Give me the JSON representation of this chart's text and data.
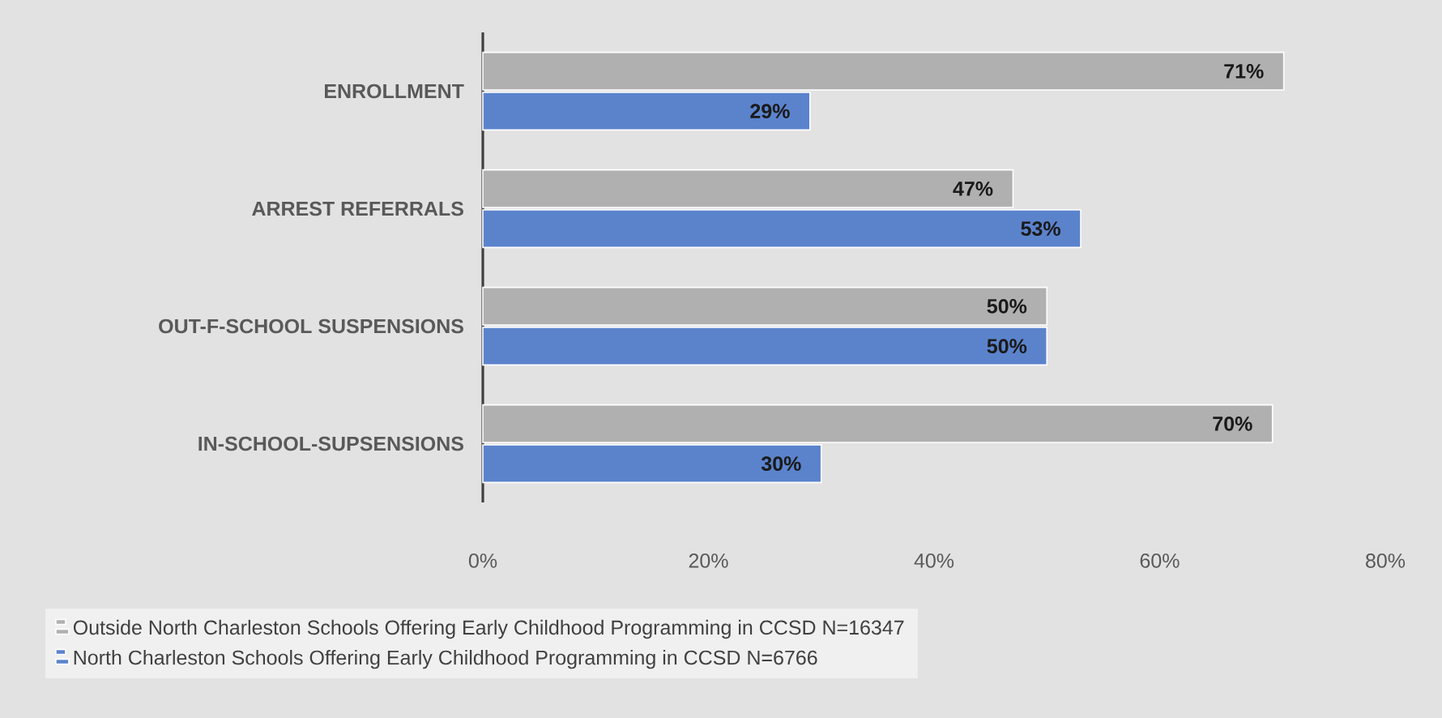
{
  "chart_data": {
    "type": "bar",
    "orientation": "horizontal",
    "categories": [
      "ENROLLMENT",
      "ARREST REFERRALS",
      "OUT-F-SCHOOL SUSPENSIONS",
      "IN-SCHOOL-SUPSENSIONS"
    ],
    "series": [
      {
        "name": "Outside North Charleston Schools Offering Early Childhood Programming in CCSD N=16347",
        "color": "#b0b0b0",
        "values": [
          71,
          47,
          50,
          70
        ],
        "value_labels": [
          "71%",
          "47%",
          "50%",
          "70%"
        ]
      },
      {
        "name": "North Charleston Schools Offering Early Childhood Programming in CCSD N=6766",
        "color": "#5b83cc",
        "values": [
          29,
          53,
          50,
          30
        ],
        "value_labels": [
          "29%",
          "53%",
          "50%",
          "30%"
        ]
      }
    ],
    "xlim": [
      0,
      80
    ],
    "xticks": [
      {
        "value": 0,
        "label": "0%"
      },
      {
        "value": 20,
        "label": "20%"
      },
      {
        "value": 40,
        "label": "40%"
      },
      {
        "value": 60,
        "label": "60%"
      },
      {
        "value": 80,
        "label": "80%"
      }
    ],
    "grid": false,
    "legend": "bottom"
  }
}
